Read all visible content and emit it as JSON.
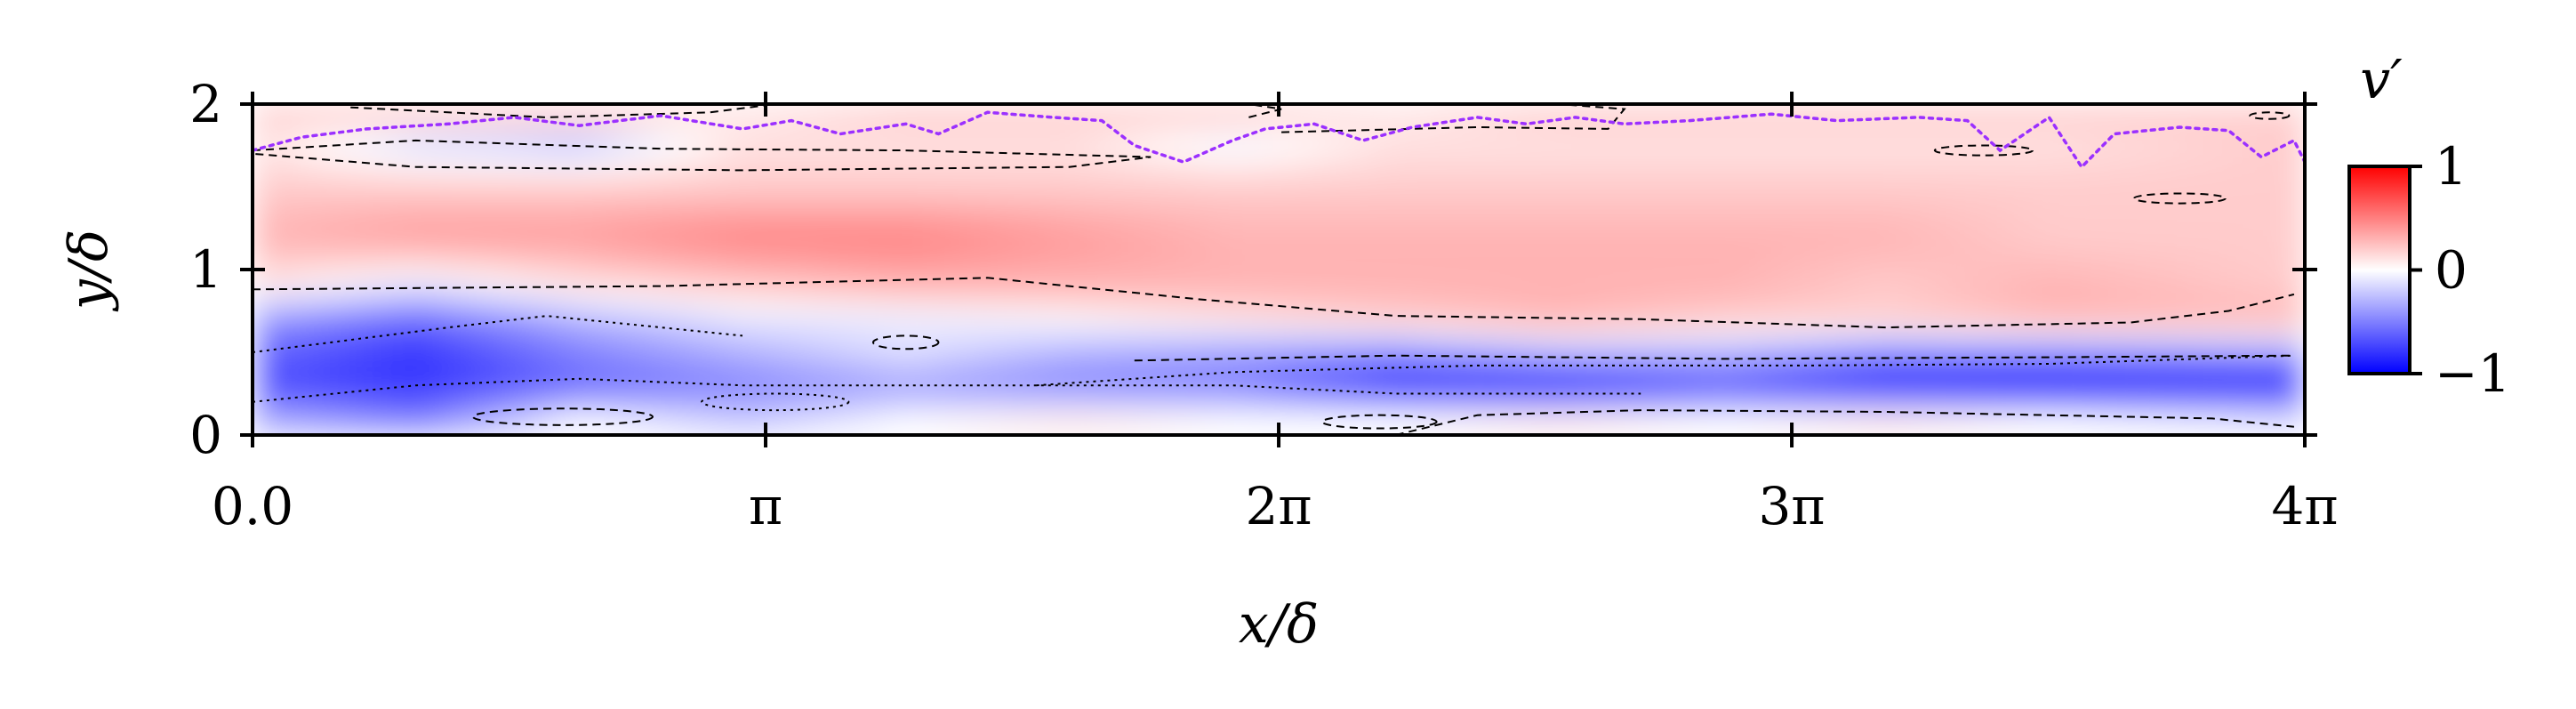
{
  "chart_data": {
    "type": "heatmap",
    "title": "",
    "xlabel": "x/δ",
    "ylabel": "y/δ",
    "xlim": [
      0,
      12.566
    ],
    "ylim": [
      0,
      2
    ],
    "x_ticks": [
      {
        "value": 0,
        "label": "0.0"
      },
      {
        "value": 3.1416,
        "label": "π"
      },
      {
        "value": 6.2832,
        "label": "2π"
      },
      {
        "value": 9.4248,
        "label": "3π"
      },
      {
        "value": 12.566,
        "label": "4π"
      }
    ],
    "y_ticks": [
      {
        "value": 0,
        "label": "0"
      },
      {
        "value": 1,
        "label": "1"
      },
      {
        "value": 2,
        "label": "2"
      }
    ],
    "colorbar": {
      "label": "v′",
      "range": [
        -1,
        1
      ],
      "ticks": [
        {
          "value": 1,
          "label": "1"
        },
        {
          "value": 0,
          "label": "0"
        },
        {
          "value": -1,
          "label": "−1"
        }
      ],
      "colormap": "bwr",
      "colors": {
        "low": "#0000ff",
        "mid": "#ffffff",
        "high": "#ff0000"
      }
    },
    "field": {
      "x": [
        0,
        1.0,
        2.0,
        3.0,
        4.0,
        5.0,
        6.0,
        7.0,
        8.0,
        9.0,
        10.0,
        11.0,
        12.5
      ],
      "y": [
        0.1,
        0.3,
        0.5,
        0.7,
        0.9,
        1.2,
        1.5,
        1.8,
        1.9
      ],
      "values": [
        [
          -0.3,
          -0.5,
          0.0,
          -0.2,
          0.0,
          0.1,
          0.0,
          0.0,
          0.1,
          0.0,
          0.1,
          0.0,
          -0.1
        ],
        [
          -0.7,
          -0.8,
          -0.6,
          -0.5,
          -0.4,
          -0.5,
          -0.5,
          -0.8,
          -0.9,
          -0.7,
          -0.9,
          -0.9,
          -0.9
        ],
        [
          -0.6,
          -0.8,
          -0.5,
          -0.3,
          -0.1,
          -0.3,
          -0.4,
          -0.5,
          -0.3,
          -0.3,
          -0.5,
          -0.5,
          -0.4
        ],
        [
          -0.4,
          -0.6,
          -0.3,
          -0.1,
          -0.1,
          0.0,
          0.1,
          0.2,
          0.3,
          0.2,
          0.2,
          0.3,
          0.3
        ],
        [
          0.1,
          -0.1,
          0.1,
          0.2,
          0.3,
          0.3,
          0.3,
          0.3,
          0.3,
          0.3,
          0.2,
          0.3,
          0.2
        ],
        [
          0.3,
          0.4,
          0.4,
          0.5,
          0.5,
          0.4,
          0.3,
          0.3,
          0.3,
          0.3,
          0.3,
          0.2,
          0.2
        ],
        [
          0.2,
          0.2,
          0.2,
          0.2,
          0.2,
          0.2,
          0.2,
          0.2,
          0.2,
          0.2,
          0.2,
          0.2,
          0.2
        ],
        [
          0.1,
          -0.2,
          -0.3,
          0.1,
          0.1,
          0.1,
          -0.1,
          0.1,
          0.1,
          0.1,
          0.1,
          0.1,
          0.2
        ],
        [
          0.2,
          0.2,
          0.2,
          0.1,
          0.2,
          0.2,
          0.2,
          0.1,
          0.2,
          0.2,
          0.2,
          0.2,
          0.2
        ]
      ]
    },
    "contour_lines": [
      {
        "style": "dashed",
        "color": "#000000",
        "points": [
          [
            0,
            0.88
          ],
          [
            2.5,
            0.9
          ],
          [
            4.5,
            0.95
          ],
          [
            5.8,
            0.82
          ],
          [
            7.0,
            0.72
          ],
          [
            8.5,
            0.7
          ],
          [
            10.0,
            0.65
          ],
          [
            11.5,
            0.68
          ],
          [
            12.1,
            0.75
          ],
          [
            12.5,
            0.85
          ]
        ]
      },
      {
        "style": "dashed",
        "color": "#000000",
        "points": [
          [
            5.4,
            0.45
          ],
          [
            7.0,
            0.48
          ],
          [
            9.0,
            0.46
          ],
          [
            11.0,
            0.47
          ],
          [
            12.5,
            0.48
          ]
        ]
      },
      {
        "style": "dashed",
        "color": "#000000",
        "points": [
          [
            7.0,
            0.0
          ],
          [
            7.5,
            0.12
          ],
          [
            8.5,
            0.15
          ],
          [
            10.0,
            0.14
          ],
          [
            11.0,
            0.12
          ],
          [
            12.0,
            0.1
          ],
          [
            12.5,
            0.05
          ]
        ]
      },
      {
        "style": "dotted",
        "color": "#000000",
        "points": [
          [
            0,
            0.5
          ],
          [
            1.2,
            0.65
          ],
          [
            1.8,
            0.72
          ],
          [
            2.4,
            0.66
          ],
          [
            3.0,
            0.6
          ]
        ]
      },
      {
        "style": "dotted",
        "color": "#000000",
        "points": [
          [
            0,
            0.2
          ],
          [
            1.0,
            0.3
          ],
          [
            2.0,
            0.34
          ],
          [
            3.0,
            0.3
          ],
          [
            4.5,
            0.3
          ],
          [
            6.0,
            0.3
          ],
          [
            7.0,
            0.25
          ],
          [
            8.5,
            0.25
          ]
        ]
      },
      {
        "style": "dotted",
        "color": "#000000",
        "points": [
          [
            4.8,
            0.3
          ],
          [
            6.0,
            0.38
          ],
          [
            7.5,
            0.42
          ],
          [
            9.5,
            0.42
          ],
          [
            11.0,
            0.43
          ],
          [
            12.5,
            0.48
          ]
        ]
      },
      {
        "style": "dashed",
        "color": "#000000",
        "points": [
          [
            0,
            1.72
          ],
          [
            1.0,
            1.78
          ],
          [
            2.5,
            1.73
          ],
          [
            4.0,
            1.72
          ],
          [
            5.5,
            1.68
          ],
          [
            5.0,
            1.62
          ],
          [
            3.0,
            1.6
          ],
          [
            1.0,
            1.62
          ],
          [
            0,
            1.7
          ]
        ]
      },
      {
        "style": "dashed",
        "color": "#000000",
        "points": [
          [
            0.6,
            1.98
          ],
          [
            1.8,
            1.92
          ],
          [
            2.8,
            1.95
          ],
          [
            3.2,
            2.0
          ]
        ]
      },
      {
        "style": "dashed",
        "color": "#000000",
        "points": [
          [
            6.3,
            1.83
          ],
          [
            7.5,
            1.86
          ],
          [
            8.3,
            1.85
          ],
          [
            8.4,
            1.97
          ],
          [
            8.0,
            2.0
          ]
        ]
      },
      {
        "style": "dashed",
        "color": "#000000",
        "points": [
          [
            6.1,
            1.92
          ],
          [
            6.3,
            1.97
          ],
          [
            6.1,
            2.0
          ]
        ]
      }
    ],
    "contour_ellipses": [
      {
        "style": "dashed",
        "cx": 4.0,
        "cy": 0.56,
        "rx": 0.2,
        "ry": 0.04
      },
      {
        "style": "dotted",
        "cx": 3.2,
        "cy": 0.2,
        "rx": 0.45,
        "ry": 0.05
      },
      {
        "style": "dashed",
        "cx": 1.9,
        "cy": 0.11,
        "rx": 0.55,
        "ry": 0.05
      },
      {
        "style": "dashed",
        "cx": 6.9,
        "cy": 0.08,
        "rx": 0.35,
        "ry": 0.04
      },
      {
        "style": "dashed",
        "cx": 10.6,
        "cy": 1.72,
        "rx": 0.3,
        "ry": 0.03
      },
      {
        "style": "dashed",
        "cx": 11.8,
        "cy": 1.43,
        "rx": 0.28,
        "ry": 0.03
      },
      {
        "style": "dashed",
        "cx": 12.35,
        "cy": 1.93,
        "rx": 0.12,
        "ry": 0.02
      }
    ],
    "interface_line": {
      "color": "#9b30ff",
      "style": "dotted",
      "points": [
        [
          0,
          1.72
        ],
        [
          0.3,
          1.8
        ],
        [
          0.7,
          1.85
        ],
        [
          1.2,
          1.88
        ],
        [
          1.6,
          1.92
        ],
        [
          2.0,
          1.87
        ],
        [
          2.5,
          1.93
        ],
        [
          3.0,
          1.85
        ],
        [
          3.3,
          1.9
        ],
        [
          3.6,
          1.82
        ],
        [
          4.0,
          1.88
        ],
        [
          4.2,
          1.82
        ],
        [
          4.5,
          1.95
        ],
        [
          4.9,
          1.92
        ],
        [
          5.2,
          1.9
        ],
        [
          5.4,
          1.75
        ],
        [
          5.7,
          1.65
        ],
        [
          6.0,
          1.78
        ],
        [
          6.2,
          1.85
        ],
        [
          6.5,
          1.88
        ],
        [
          6.8,
          1.78
        ],
        [
          7.1,
          1.86
        ],
        [
          7.5,
          1.92
        ],
        [
          7.8,
          1.88
        ],
        [
          8.1,
          1.92
        ],
        [
          8.4,
          1.88
        ],
        [
          8.8,
          1.9
        ],
        [
          9.3,
          1.94
        ],
        [
          9.7,
          1.9
        ],
        [
          10.2,
          1.92
        ],
        [
          10.5,
          1.9
        ],
        [
          10.7,
          1.72
        ],
        [
          11.0,
          1.92
        ],
        [
          11.2,
          1.62
        ],
        [
          11.4,
          1.82
        ],
        [
          11.8,
          1.86
        ],
        [
          12.1,
          1.84
        ],
        [
          12.3,
          1.68
        ],
        [
          12.5,
          1.78
        ],
        [
          12.566,
          1.65
        ]
      ]
    }
  }
}
